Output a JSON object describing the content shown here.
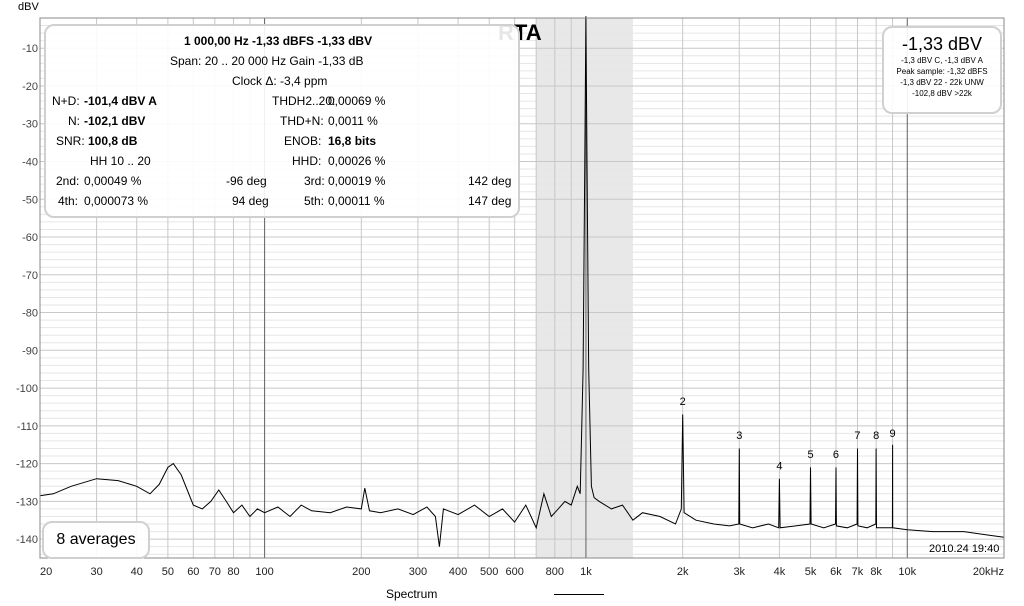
{
  "chart_data": {
    "type": "line",
    "title": "RTA",
    "ylabel": "dBV",
    "xlabel": "Spectrum",
    "xscale": "log",
    "xlim": [
      20,
      20000
    ],
    "ylim": [
      -145,
      -2
    ],
    "grid": true,
    "shaded_band": [
      700,
      1400
    ],
    "y_ticks": [
      -10,
      -20,
      -30,
      -40,
      -50,
      -60,
      -70,
      -80,
      -90,
      -100,
      -110,
      -120,
      -130,
      -140
    ],
    "x_ticks": [
      {
        "value": 20,
        "label": "20"
      },
      {
        "value": 30,
        "label": "30"
      },
      {
        "value": 40,
        "label": "40"
      },
      {
        "value": 50,
        "label": "50"
      },
      {
        "value": 60,
        "label": "60"
      },
      {
        "value": 70,
        "label": "70"
      },
      {
        "value": 80,
        "label": "80"
      },
      {
        "value": 100,
        "label": "100"
      },
      {
        "value": 200,
        "label": "200"
      },
      {
        "value": 300,
        "label": "300"
      },
      {
        "value": 400,
        "label": "400"
      },
      {
        "value": 500,
        "label": "500"
      },
      {
        "value": 600,
        "label": "600"
      },
      {
        "value": 800,
        "label": "800"
      },
      {
        "value": 1000,
        "label": "1k"
      },
      {
        "value": 2000,
        "label": "2k"
      },
      {
        "value": 3000,
        "label": "3k"
      },
      {
        "value": 4000,
        "label": "4k"
      },
      {
        "value": 5000,
        "label": "5k"
      },
      {
        "value": 6000,
        "label": "6k"
      },
      {
        "value": 7000,
        "label": "7k"
      },
      {
        "value": 8000,
        "label": "8k"
      },
      {
        "value": 10000,
        "label": "10k"
      },
      {
        "value": 20000,
        "label": "20kHz"
      }
    ],
    "series": [
      {
        "values": [
          [
            20,
            -128.5
          ],
          [
            22,
            -128
          ],
          [
            25,
            -126
          ],
          [
            30,
            -124
          ],
          [
            35,
            -124.5
          ],
          [
            40,
            -126
          ],
          [
            44,
            -128
          ],
          [
            47,
            -125.5
          ],
          [
            50,
            -121
          ],
          [
            52,
            -120
          ],
          [
            55,
            -123
          ],
          [
            60,
            -131
          ],
          [
            64,
            -132
          ],
          [
            68,
            -130
          ],
          [
            72,
            -127
          ],
          [
            76,
            -130
          ],
          [
            80,
            -133
          ],
          [
            85,
            -131
          ],
          [
            90,
            -134
          ],
          [
            95,
            -132
          ],
          [
            100,
            -133
          ],
          [
            110,
            -131.5
          ],
          [
            120,
            -134
          ],
          [
            130,
            -131
          ],
          [
            140,
            -132.5
          ],
          [
            160,
            -133
          ],
          [
            180,
            -131.5
          ],
          [
            200,
            -132
          ],
          [
            205,
            -126.5
          ],
          [
            212,
            -132.5
          ],
          [
            230,
            -133
          ],
          [
            260,
            -132
          ],
          [
            290,
            -133.5
          ],
          [
            320,
            -131.5
          ],
          [
            340,
            -134
          ],
          [
            350,
            -142
          ],
          [
            360,
            -132
          ],
          [
            400,
            -133.5
          ],
          [
            450,
            -131
          ],
          [
            500,
            -134
          ],
          [
            550,
            -132
          ],
          [
            600,
            -135.5
          ],
          [
            650,
            -131
          ],
          [
            700,
            -137
          ],
          [
            740,
            -128
          ],
          [
            780,
            -134
          ],
          [
            820,
            -132
          ],
          [
            860,
            -130
          ],
          [
            900,
            -131
          ],
          [
            940,
            -126
          ],
          [
            960,
            -128
          ],
          [
            980,
            -95
          ],
          [
            992,
            -40
          ],
          [
            1000,
            -1.5
          ],
          [
            1008,
            -40
          ],
          [
            1020,
            -95
          ],
          [
            1040,
            -126
          ],
          [
            1060,
            -129
          ],
          [
            1100,
            -130
          ],
          [
            1200,
            -132
          ],
          [
            1300,
            -131
          ],
          [
            1400,
            -135
          ],
          [
            1500,
            -133
          ],
          [
            1700,
            -134
          ],
          [
            1900,
            -136
          ],
          [
            1980,
            -132
          ],
          [
            2000,
            -107
          ],
          [
            2020,
            -133
          ],
          [
            2200,
            -135
          ],
          [
            2500,
            -136
          ],
          [
            2800,
            -136.5
          ],
          [
            2990,
            -136
          ],
          [
            3000,
            -116
          ],
          [
            3010,
            -136
          ],
          [
            3300,
            -137
          ],
          [
            3700,
            -136
          ],
          [
            3980,
            -137
          ],
          [
            4000,
            -124
          ],
          [
            4020,
            -137
          ],
          [
            4500,
            -136.5
          ],
          [
            4980,
            -136
          ],
          [
            5000,
            -121
          ],
          [
            5020,
            -136
          ],
          [
            5500,
            -137
          ],
          [
            5980,
            -136
          ],
          [
            6000,
            -121
          ],
          [
            6020,
            -136.5
          ],
          [
            6500,
            -137
          ],
          [
            6980,
            -136
          ],
          [
            7000,
            -116
          ],
          [
            7020,
            -136.5
          ],
          [
            7500,
            -137
          ],
          [
            7980,
            -136
          ],
          [
            8000,
            -116
          ],
          [
            8020,
            -137
          ],
          [
            8500,
            -137
          ],
          [
            8990,
            -137
          ],
          [
            9000,
            -115
          ],
          [
            9010,
            -137
          ],
          [
            10000,
            -137.5
          ],
          [
            12000,
            -138
          ],
          [
            15000,
            -138
          ],
          [
            18000,
            -139
          ],
          [
            20000,
            -139.5
          ]
        ]
      }
    ],
    "annotations": [
      {
        "x": 2000,
        "y": -104.5,
        "label": "2"
      },
      {
        "x": 3000,
        "y": -113.5,
        "label": "3"
      },
      {
        "x": 4000,
        "y": -121.5,
        "label": "4"
      },
      {
        "x": 5000,
        "y": -118.5,
        "label": "5"
      },
      {
        "x": 6000,
        "y": -118.5,
        "label": "6"
      },
      {
        "x": 7000,
        "y": -113.5,
        "label": "7"
      },
      {
        "x": 8000,
        "y": -113.5,
        "label": "8"
      },
      {
        "x": 9000,
        "y": -113,
        "label": "9"
      }
    ]
  },
  "info": {
    "line1": "1 000,00 Hz  -1,33 dBFS  -1,33 dBV",
    "line2": "Span: 20 .. 20 000 Hz   Gain -1,33 dB",
    "line3": "Clock Δ: -3,4 ppm",
    "nd_label": "N+D:",
    "nd_value": "-101,4 dBV A",
    "n_label": "N:",
    "n_value": "-102,1 dBV",
    "snr_label": "SNR:",
    "snr_value": "100,8 dB",
    "hh_label": "HH 10 .. 20",
    "thd_label": "THDH2..20:",
    "thd_value": "0,00069 %",
    "thdn_label": "THD+N:",
    "thdn_value": "0,0011 %",
    "enob_label": "ENOB:",
    "enob_value": "16,8 bits",
    "hhd_label": "HHD:",
    "hhd_value": "0,00026 %",
    "h2_label": "2nd:",
    "h2_value": "0,00049 %",
    "h2_phase": "-96 deg",
    "h3_label": "3rd:",
    "h3_value": "0,00019 %",
    "h3_phase": "142 deg",
    "h4_label": "4th:",
    "h4_value": "0,000073 %",
    "h4_phase": "94 deg",
    "h5_label": "5th:",
    "h5_value": "0,00011 %",
    "h5_phase": "147 deg"
  },
  "level": {
    "big": "-1,33 dBV",
    "l1": "-1,3 dBV C, -1,3 dBV A",
    "l2": "Peak sample: -1,32 dBFS",
    "l3": "-1,3 dBV 22 - 22k UNW",
    "l4": "-102,8 dBV >22k"
  },
  "averages": "8 averages",
  "timestamp": "2010.24 19:40",
  "colors": {
    "trace": "#000000",
    "grid_major": "#c8c8c8",
    "grid_minor": "#e6e6e6",
    "band": "#e8e8e8"
  }
}
